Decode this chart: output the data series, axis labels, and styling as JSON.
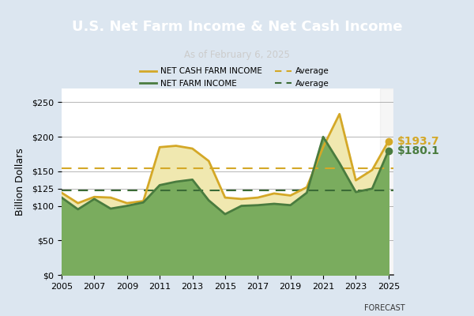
{
  "title": "U.S. Net Farm Income & Net Cash Income",
  "subtitle": "As of February 6, 2025",
  "ylabel": "Billion Dollars",
  "forecast_label": "FORECAST",
  "years": [
    2005,
    2006,
    2007,
    2008,
    2009,
    2010,
    2011,
    2012,
    2013,
    2014,
    2015,
    2016,
    2017,
    2018,
    2019,
    2020,
    2021,
    2022,
    2023,
    2024,
    2025
  ],
  "net_cash_farm_income": [
    119,
    104,
    113,
    112,
    104,
    107,
    185,
    187,
    183,
    165,
    112,
    110,
    112,
    118,
    115,
    127,
    185,
    233,
    137,
    152,
    193.7
  ],
  "net_farm_income": [
    112,
    95,
    110,
    96,
    100,
    105,
    130,
    135,
    138,
    108,
    88,
    100,
    101,
    103,
    101,
    119,
    200,
    162,
    120,
    125,
    180.1
  ],
  "net_cash_avg": 155,
  "net_farm_avg": 122,
  "net_cash_color": "#d4a827",
  "net_farm_color": "#4a7c3f",
  "net_cash_fill": "#f0e8b0",
  "net_farm_fill": "#7aac5e",
  "avg_cash_color": "#d4a827",
  "avg_farm_color": "#3a6b35",
  "title_bg_color": "#3d3d3d",
  "title_text_color": "#ffffff",
  "subtitle_text_color": "#cccccc",
  "chart_bg_color": "#dce6f0",
  "plot_bg_color": "#ffffff",
  "end_label_cash": "$193.7",
  "end_label_farm": "$180.1",
  "ylim": [
    0,
    270
  ],
  "ytick_vals": [
    0,
    50,
    100,
    125,
    150,
    200,
    250
  ],
  "ytick_labels": [
    "$0",
    "$50",
    "$100",
    "$125",
    "$150",
    "$200",
    "$250"
  ],
  "xtick_years": [
    2005,
    2007,
    2009,
    2011,
    2013,
    2015,
    2017,
    2019,
    2021,
    2023,
    2025
  ]
}
